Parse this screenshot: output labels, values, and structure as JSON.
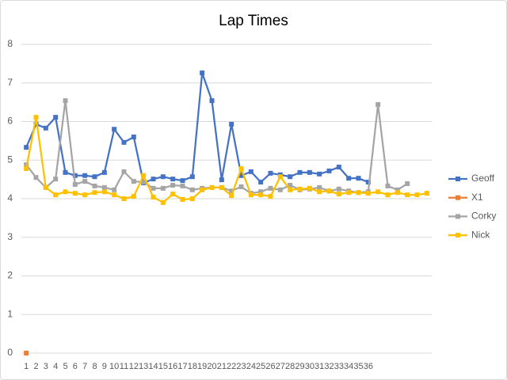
{
  "chart_data": {
    "type": "line",
    "title": "Lap Times",
    "categories": [
      1,
      2,
      3,
      4,
      5,
      6,
      7,
      8,
      9,
      10,
      11,
      12,
      13,
      14,
      15,
      16,
      17,
      18,
      19,
      20,
      21,
      22,
      23,
      24,
      25,
      26,
      27,
      28,
      29,
      30,
      31,
      32,
      33,
      34,
      35,
      36,
      null,
      null,
      null,
      null,
      null,
      null
    ],
    "series": [
      {
        "name": "Geoff",
        "color": "#4472c4",
        "values": [
          5.33,
          5.93,
          5.83,
          6.11,
          4.68,
          4.6,
          4.6,
          4.57,
          4.68,
          5.8,
          5.46,
          5.6,
          4.41,
          4.51,
          4.57,
          4.51,
          4.47,
          4.57,
          7.26,
          6.54,
          4.49,
          5.93,
          4.6,
          4.7,
          4.43,
          4.66,
          4.62,
          4.57,
          4.68,
          4.68,
          4.64,
          4.72,
          4.82,
          4.53,
          4.53,
          4.43,
          null,
          null,
          null,
          null,
          null,
          null
        ]
      },
      {
        "name": "X1",
        "color": "#ed7d31",
        "values": [
          0,
          null,
          null,
          null,
          null,
          null,
          null,
          null,
          null,
          null,
          null,
          null,
          null,
          null,
          null,
          null,
          null,
          null,
          null,
          null,
          null,
          null,
          null,
          null,
          null,
          null,
          null,
          null,
          null,
          null,
          null,
          null,
          null,
          null,
          null,
          null,
          null,
          null,
          null,
          null,
          null,
          null
        ]
      },
      {
        "name": "Corky",
        "color": "#a5a5a5",
        "values": [
          4.88,
          4.55,
          4.29,
          4.51,
          6.54,
          4.37,
          4.45,
          4.33,
          4.29,
          4.23,
          4.7,
          4.45,
          4.43,
          4.27,
          4.27,
          4.35,
          4.33,
          4.23,
          4.27,
          4.29,
          4.29,
          4.2,
          4.31,
          4.14,
          4.18,
          4.27,
          4.23,
          4.35,
          4.23,
          4.25,
          4.29,
          4.2,
          4.25,
          4.2,
          4.16,
          4.18,
          6.44,
          4.33,
          4.23,
          4.39,
          null,
          null
        ]
      },
      {
        "name": "Nick",
        "color": "#ffc000",
        "values": [
          4.78,
          6.11,
          4.29,
          4.1,
          4.18,
          4.14,
          4.1,
          4.16,
          4.18,
          4.1,
          4.0,
          4.06,
          4.6,
          4.04,
          3.9,
          4.12,
          3.98,
          4.0,
          4.23,
          4.29,
          4.29,
          4.08,
          4.78,
          4.1,
          4.1,
          4.06,
          4.57,
          4.23,
          4.25,
          4.27,
          4.18,
          4.2,
          4.12,
          4.16,
          4.16,
          4.14,
          4.18,
          4.1,
          4.16,
          4.1,
          4.1,
          4.14
        ]
      }
    ],
    "ylim": [
      0,
      8
    ],
    "yticks": [
      0,
      1,
      2,
      3,
      4,
      5,
      6,
      7,
      8
    ],
    "grid": true,
    "legend": "right"
  }
}
